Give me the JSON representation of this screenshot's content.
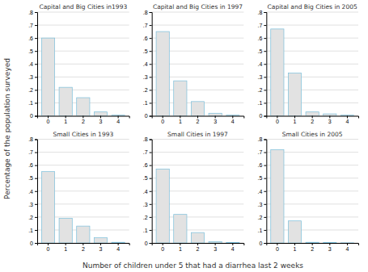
{
  "chart_data": [
    {
      "type": "bar",
      "title": "Capital and Big Cities in1993",
      "categories": [
        "0",
        "1",
        "2",
        "3",
        "4"
      ],
      "values": [
        0.6,
        0.22,
        0.14,
        0.03,
        0.005
      ],
      "color": "#e2e2e2",
      "ylim": [
        0,
        0.8
      ],
      "yticks": [
        0,
        {
          "value": 0.1,
          "label": ".1"
        },
        {
          "value": 0.2,
          "label": ".2"
        },
        {
          "value": 0.3,
          "label": ".3"
        },
        {
          "value": 0.4,
          "label": ".4"
        },
        {
          "value": 0.5,
          "label": ".5"
        },
        {
          "value": 0.6,
          "label": ".6"
        },
        {
          "value": 0.7,
          "label": ".7"
        },
        {
          "value": 0.8,
          "label": ".8"
        }
      ],
      "grid": true
    },
    {
      "type": "bar",
      "title": "Capital and Big Cities in 1997",
      "categories": [
        "0",
        "1",
        "2",
        "3",
        "4"
      ],
      "values": [
        0.65,
        0.27,
        0.11,
        0.02,
        0.005
      ],
      "color": "#e2e2e2",
      "ylim": [
        0,
        0.8
      ],
      "yticks": [
        0,
        {
          "value": 0.1,
          "label": ".1"
        },
        {
          "value": 0.2,
          "label": ".2"
        },
        {
          "value": 0.3,
          "label": ".3"
        },
        {
          "value": 0.4,
          "label": ".4"
        },
        {
          "value": 0.5,
          "label": ".5"
        },
        {
          "value": 0.6,
          "label": ".6"
        },
        {
          "value": 0.7,
          "label": ".7"
        },
        {
          "value": 0.8,
          "label": ".8"
        }
      ],
      "grid": true
    },
    {
      "type": "bar",
      "title": "Capital and Big Cities in 2005",
      "categories": [
        "0",
        "1",
        "2",
        "3",
        "4"
      ],
      "values": [
        0.67,
        0.33,
        0.03,
        0.015,
        0.005
      ],
      "color": "#e2e2e2",
      "ylim": [
        0,
        0.8
      ],
      "yticks": [
        0,
        {
          "value": 0.1,
          "label": ".1"
        },
        {
          "value": 0.2,
          "label": ".2"
        },
        {
          "value": 0.3,
          "label": ".3"
        },
        {
          "value": 0.4,
          "label": ".4"
        },
        {
          "value": 0.5,
          "label": ".5"
        },
        {
          "value": 0.6,
          "label": ".6"
        },
        {
          "value": 0.7,
          "label": ".7"
        },
        {
          "value": 0.8,
          "label": ".8"
        }
      ],
      "grid": true
    },
    {
      "type": "bar",
      "title": "Small Cities in 1993",
      "categories": [
        "0",
        "1",
        "2",
        "3",
        "4"
      ],
      "values": [
        0.55,
        0.19,
        0.13,
        0.04,
        0.005
      ],
      "color": "#e2e2e2",
      "ylim": [
        0,
        0.8
      ],
      "yticks": [
        0,
        {
          "value": 0.1,
          "label": ".1"
        },
        {
          "value": 0.2,
          "label": ".2"
        },
        {
          "value": 0.3,
          "label": ".3"
        },
        {
          "value": 0.4,
          "label": ".4"
        },
        {
          "value": 0.5,
          "label": ".5"
        },
        {
          "value": 0.6,
          "label": ".6"
        },
        {
          "value": 0.7,
          "label": ".7"
        },
        {
          "value": 0.8,
          "label": ".8"
        }
      ],
      "grid": true
    },
    {
      "type": "bar",
      "title": "Small Cities in 1997",
      "categories": [
        "0",
        "1",
        "2",
        "3",
        "4"
      ],
      "values": [
        0.57,
        0.22,
        0.08,
        0.01,
        0.003
      ],
      "color": "#e2e2e2",
      "ylim": [
        0,
        0.8
      ],
      "yticks": [
        0,
        {
          "value": 0.1,
          "label": ".1"
        },
        {
          "value": 0.2,
          "label": ".2"
        },
        {
          "value": 0.3,
          "label": ".3"
        },
        {
          "value": 0.4,
          "label": ".4"
        },
        {
          "value": 0.5,
          "label": ".5"
        },
        {
          "value": 0.6,
          "label": ".6"
        },
        {
          "value": 0.7,
          "label": ".7"
        },
        {
          "value": 0.8,
          "label": ".8"
        }
      ],
      "grid": true
    },
    {
      "type": "bar",
      "title": "Small Cities in 2005",
      "categories": [
        "0",
        "1",
        "2",
        "3",
        "4"
      ],
      "values": [
        0.72,
        0.17,
        0.005,
        0.003,
        0.001
      ],
      "color": "#e2e2e2",
      "ylim": [
        0,
        0.8
      ],
      "yticks": [
        0,
        {
          "value": 0.1,
          "label": ".1"
        },
        {
          "value": 0.2,
          "label": ".2"
        },
        {
          "value": 0.3,
          "label": ".3"
        },
        {
          "value": 0.4,
          "label": ".4"
        },
        {
          "value": 0.5,
          "label": ".5"
        },
        {
          "value": 0.6,
          "label": ".6"
        },
        {
          "value": 0.7,
          "label": ".7"
        },
        {
          "value": 0.8,
          "label": ".8"
        }
      ],
      "grid": true
    }
  ],
  "xlabel": "Number of children under 5 that had a diarrhea last 2 weeks",
  "ylabel": "Percentage of the population surveyed"
}
